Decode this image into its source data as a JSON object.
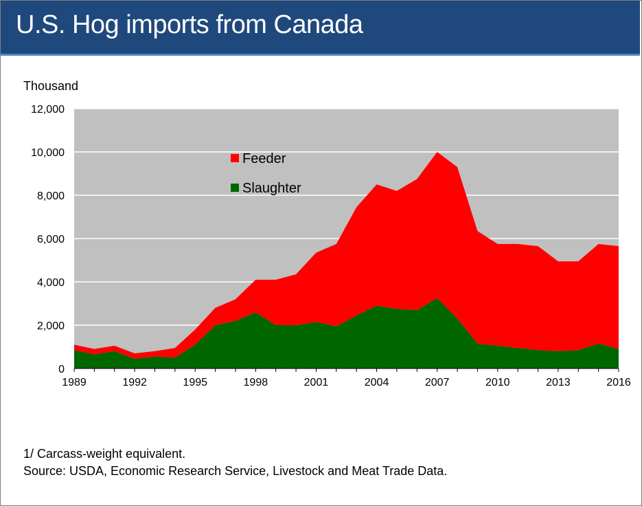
{
  "header": {
    "title": "U.S. Hog imports from Canada"
  },
  "chart_data": {
    "type": "area",
    "stacked": true,
    "units_label": "Thousand",
    "x": [
      1989,
      1990,
      1991,
      1992,
      1993,
      1994,
      1995,
      1996,
      1997,
      1998,
      1999,
      2000,
      2001,
      2002,
      2003,
      2004,
      2005,
      2006,
      2007,
      2008,
      2009,
      2010,
      2011,
      2012,
      2013,
      2014,
      2015,
      2016
    ],
    "series": [
      {
        "name": "Slaughter",
        "color": "#006600",
        "values": [
          850,
          650,
          800,
          450,
          550,
          500,
          1100,
          2000,
          2200,
          2600,
          2000,
          2000,
          2150,
          1950,
          2450,
          2900,
          2750,
          2700,
          3250,
          2300,
          1150,
          1050,
          950,
          850,
          800,
          850,
          1150,
          900
        ]
      },
      {
        "name": "Feeder",
        "color": "#ff0000",
        "values": [
          250,
          250,
          250,
          250,
          250,
          450,
          700,
          800,
          1000,
          1500,
          2100,
          2350,
          3200,
          3800,
          5000,
          5600,
          5450,
          6050,
          6750,
          7000,
          5200,
          4700,
          4800,
          4800,
          4150,
          4100,
          4600,
          4750
        ]
      }
    ],
    "ylim": [
      0,
      12000
    ],
    "yticks": [
      "0",
      "2,000",
      "4,000",
      "6,000",
      "8,000",
      "10,000",
      "12,000"
    ],
    "xtick_labels": [
      "1989",
      "1992",
      "1995",
      "1998",
      "2001",
      "2004",
      "2007",
      "2010",
      "2013",
      "2016"
    ],
    "grid": true,
    "legend_position": "inside-top-center",
    "plot_background": "#c0c0c0"
  },
  "footnotes": {
    "note": "1/ Carcass-weight equivalent.",
    "source": "Source: USDA, Economic Research Service, Livestock and Meat Trade Data."
  }
}
